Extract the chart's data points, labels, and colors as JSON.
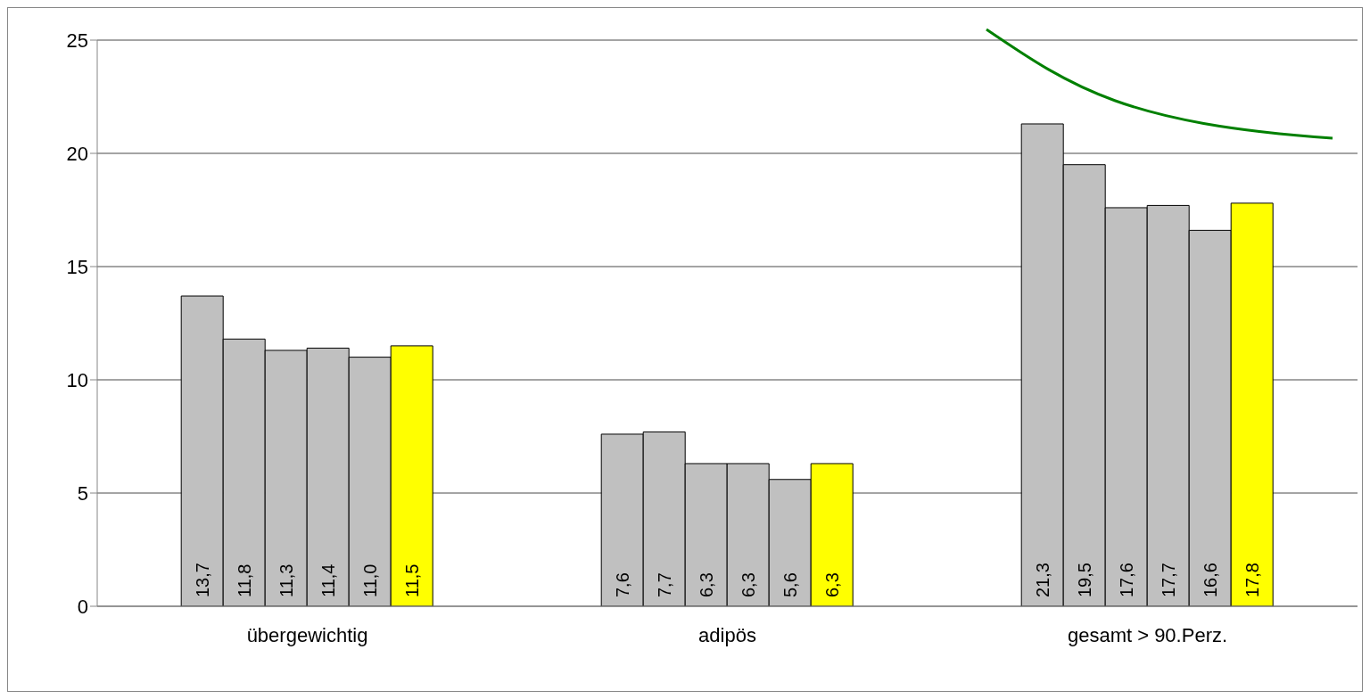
{
  "chart_data": {
    "type": "bar",
    "categories": [
      "übergewichtig",
      "adipös",
      "gesamt > 90.Perz."
    ],
    "series": [
      {
        "color": "#c0c0c0",
        "values": [
          13.7,
          7.6,
          21.3
        ],
        "value_labels": [
          "13,7",
          "7,6",
          "21,3"
        ]
      },
      {
        "color": "#c0c0c0",
        "values": [
          11.8,
          7.7,
          19.5
        ],
        "value_labels": [
          "11,8",
          "7,7",
          "19,5"
        ]
      },
      {
        "color": "#c0c0c0",
        "values": [
          11.3,
          6.3,
          17.6
        ],
        "value_labels": [
          "11,3",
          "6,3",
          "17,6"
        ]
      },
      {
        "color": "#c0c0c0",
        "values": [
          11.4,
          6.3,
          17.7
        ],
        "value_labels": [
          "11,4",
          "6,3",
          "17,7"
        ]
      },
      {
        "color": "#c0c0c0",
        "values": [
          11.0,
          5.6,
          16.6
        ],
        "value_labels": [
          "11,0",
          "5,6",
          "16,6"
        ]
      },
      {
        "color": "#ffff00",
        "values": [
          11.5,
          6.3,
          17.8
        ],
        "value_labels": [
          "11,5",
          "6,3",
          "17,8"
        ]
      }
    ],
    "ylim": [
      0,
      25
    ],
    "yticks": [
      0,
      5,
      10,
      15,
      20,
      25
    ],
    "grid": "y",
    "legend": false
  }
}
